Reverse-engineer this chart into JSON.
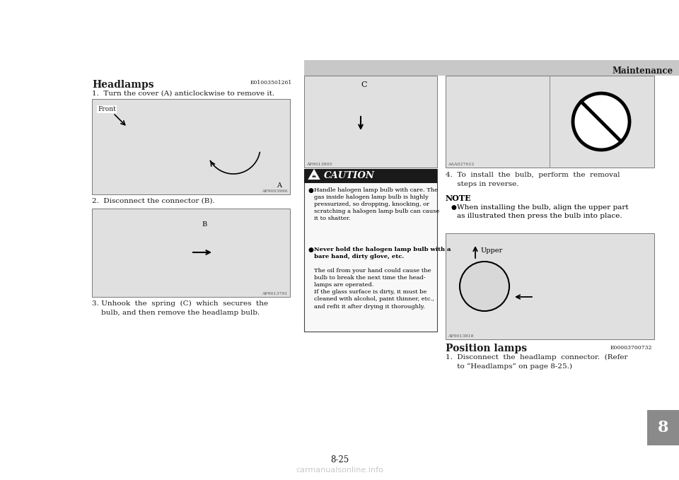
{
  "bg_color": "#ffffff",
  "header_bg": "#c8c8c8",
  "header_text": "Maintenance",
  "section_title": "Headlamps",
  "section_code": "E01003501261",
  "step1": "1.  Turn the cover (A) anticlockwise to remove it.",
  "step1_label": "Front",
  "step2": "2.  Disconnect the connector (B).",
  "step3_line1": "3. Unhook  the  spring  (C)  which  secures  the",
  "step3_line2": "    bulb, and then remove the headlamp bulb.",
  "step4_line1": "4.  To  install  the  bulb,  perform  the  removal",
  "step4_line2": "     steps in reverse.",
  "note_title": "NOTE",
  "note_bullet": "When installing the bulb, align the upper part\nas illustrated then press the bulb into place.",
  "position_title": "Position lamps",
  "position_code": "E00003700732",
  "position_step1_line1": "1.  Disconnect  the  headlamp  connector.  (Refer",
  "position_step1_line2": "     to “Headlamps” on page 8-25.)",
  "page_num": "8-25",
  "chapter_num": "8",
  "img1_label": "AP9003996",
  "img2_label": "AP9013791",
  "img3_label": "AP9013805",
  "img4_label": "AAA027612",
  "img5_label": "AP9013818",
  "upper_label": "Upper",
  "text_color": "#1a1a1a",
  "watermark": "carmanualsonline.info"
}
